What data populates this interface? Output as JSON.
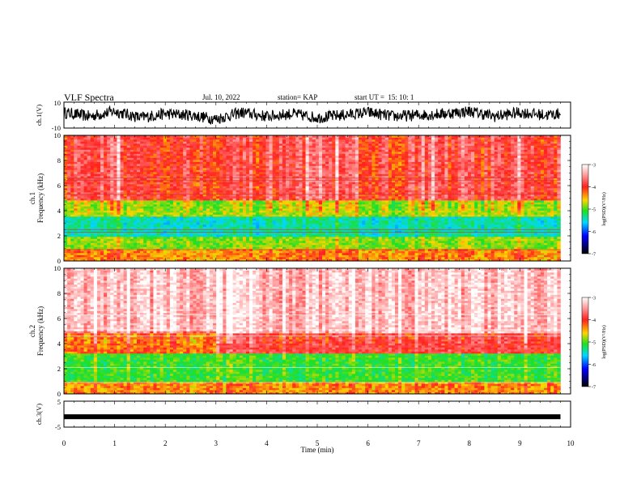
{
  "header": {
    "title": "VLF Spectra",
    "date": "Jul. 10, 2022",
    "station": "station= KAP",
    "start": "start UT =  15: 10: 1"
  },
  "colors": {
    "spectrum_ramp": [
      "#ffffff",
      "#ff9a9a",
      "#ff2020",
      "#ffd400",
      "#20e020",
      "#00d8ff",
      "#0000ff",
      "#000000"
    ],
    "trace": "#000000"
  },
  "chart_data": [
    {
      "type": "line",
      "name": "ch1-waveform",
      "ylabel": "ch.1(V)",
      "ylim": [
        -10,
        10
      ],
      "yticks": [
        "10",
        "-10"
      ],
      "x": [
        0,
        0.5,
        1,
        1.5,
        2,
        2.5,
        3,
        3.5,
        4,
        4.5,
        5,
        5.5,
        6,
        6.5,
        7,
        7.5,
        8,
        8.5,
        9,
        9.5,
        9.8
      ],
      "y": [
        2,
        -1,
        3,
        -2,
        1,
        0,
        -3,
        2,
        -1,
        1,
        -2,
        0,
        2,
        -1,
        0,
        1,
        3,
        -1,
        2,
        0,
        1
      ],
      "xlim": [
        0,
        10
      ]
    },
    {
      "type": "heatmap",
      "name": "ch1-spectrogram",
      "ylabel": "Frequency (kHz)",
      "channel_label": "ch.1",
      "ylim": [
        0,
        10
      ],
      "yticks": [
        "0",
        "2",
        "4",
        "6",
        "8",
        "10"
      ],
      "xlim": [
        0,
        10
      ],
      "data_end_min": 9.8,
      "colorbar": {
        "label": "log(PSD)(V²/Hz)",
        "ticks": [
          "-3",
          "-4",
          "-5",
          "-6",
          "-7"
        ],
        "range": [
          -7,
          -3
        ]
      },
      "bands_khz": [
        {
          "from": 0,
          "to": 1,
          "level": -4.3
        },
        {
          "from": 1,
          "to": 2,
          "level": -4.8
        },
        {
          "from": 2,
          "to": 3.6,
          "level": -5.4
        },
        {
          "from": 3.6,
          "to": 4.8,
          "level": -4.7
        },
        {
          "from": 4.8,
          "to": 10,
          "level": -3.9
        }
      ]
    },
    {
      "type": "heatmap",
      "name": "ch2-spectrogram",
      "ylabel": "Frequency (kHz)",
      "channel_label": "ch.2",
      "ylim": [
        0,
        10
      ],
      "yticks": [
        "0",
        "2",
        "4",
        "6",
        "8",
        "10"
      ],
      "xlim": [
        0,
        10
      ],
      "data_end_min": 9.8,
      "colorbar": {
        "label": "log(PSD)(V²/Hz)",
        "ticks": [
          "-3",
          "-4",
          "-5",
          "-6",
          "-7"
        ],
        "range": [
          -7,
          -3
        ]
      },
      "bands_khz": [
        {
          "from": 0,
          "to": 1,
          "level": -4.3
        },
        {
          "from": 1,
          "to": 3.2,
          "level": -5.0
        },
        {
          "from": 3.2,
          "to": 4.8,
          "level": -3.9
        },
        {
          "from": 4.8,
          "to": 10,
          "level": -3.3
        }
      ]
    },
    {
      "type": "line",
      "name": "ch3-waveform",
      "ylabel": "ch.3(V)",
      "ylim": [
        -5,
        5
      ],
      "yticks": [
        "5",
        "-5"
      ],
      "x": [
        0,
        9.8
      ],
      "y": [
        -1,
        -1
      ],
      "xlim": [
        0,
        10
      ]
    }
  ],
  "xaxis": {
    "label": "Time (min)",
    "ticks": [
      "0",
      "1",
      "2",
      "3",
      "4",
      "5",
      "6",
      "7",
      "8",
      "9",
      "10"
    ]
  }
}
